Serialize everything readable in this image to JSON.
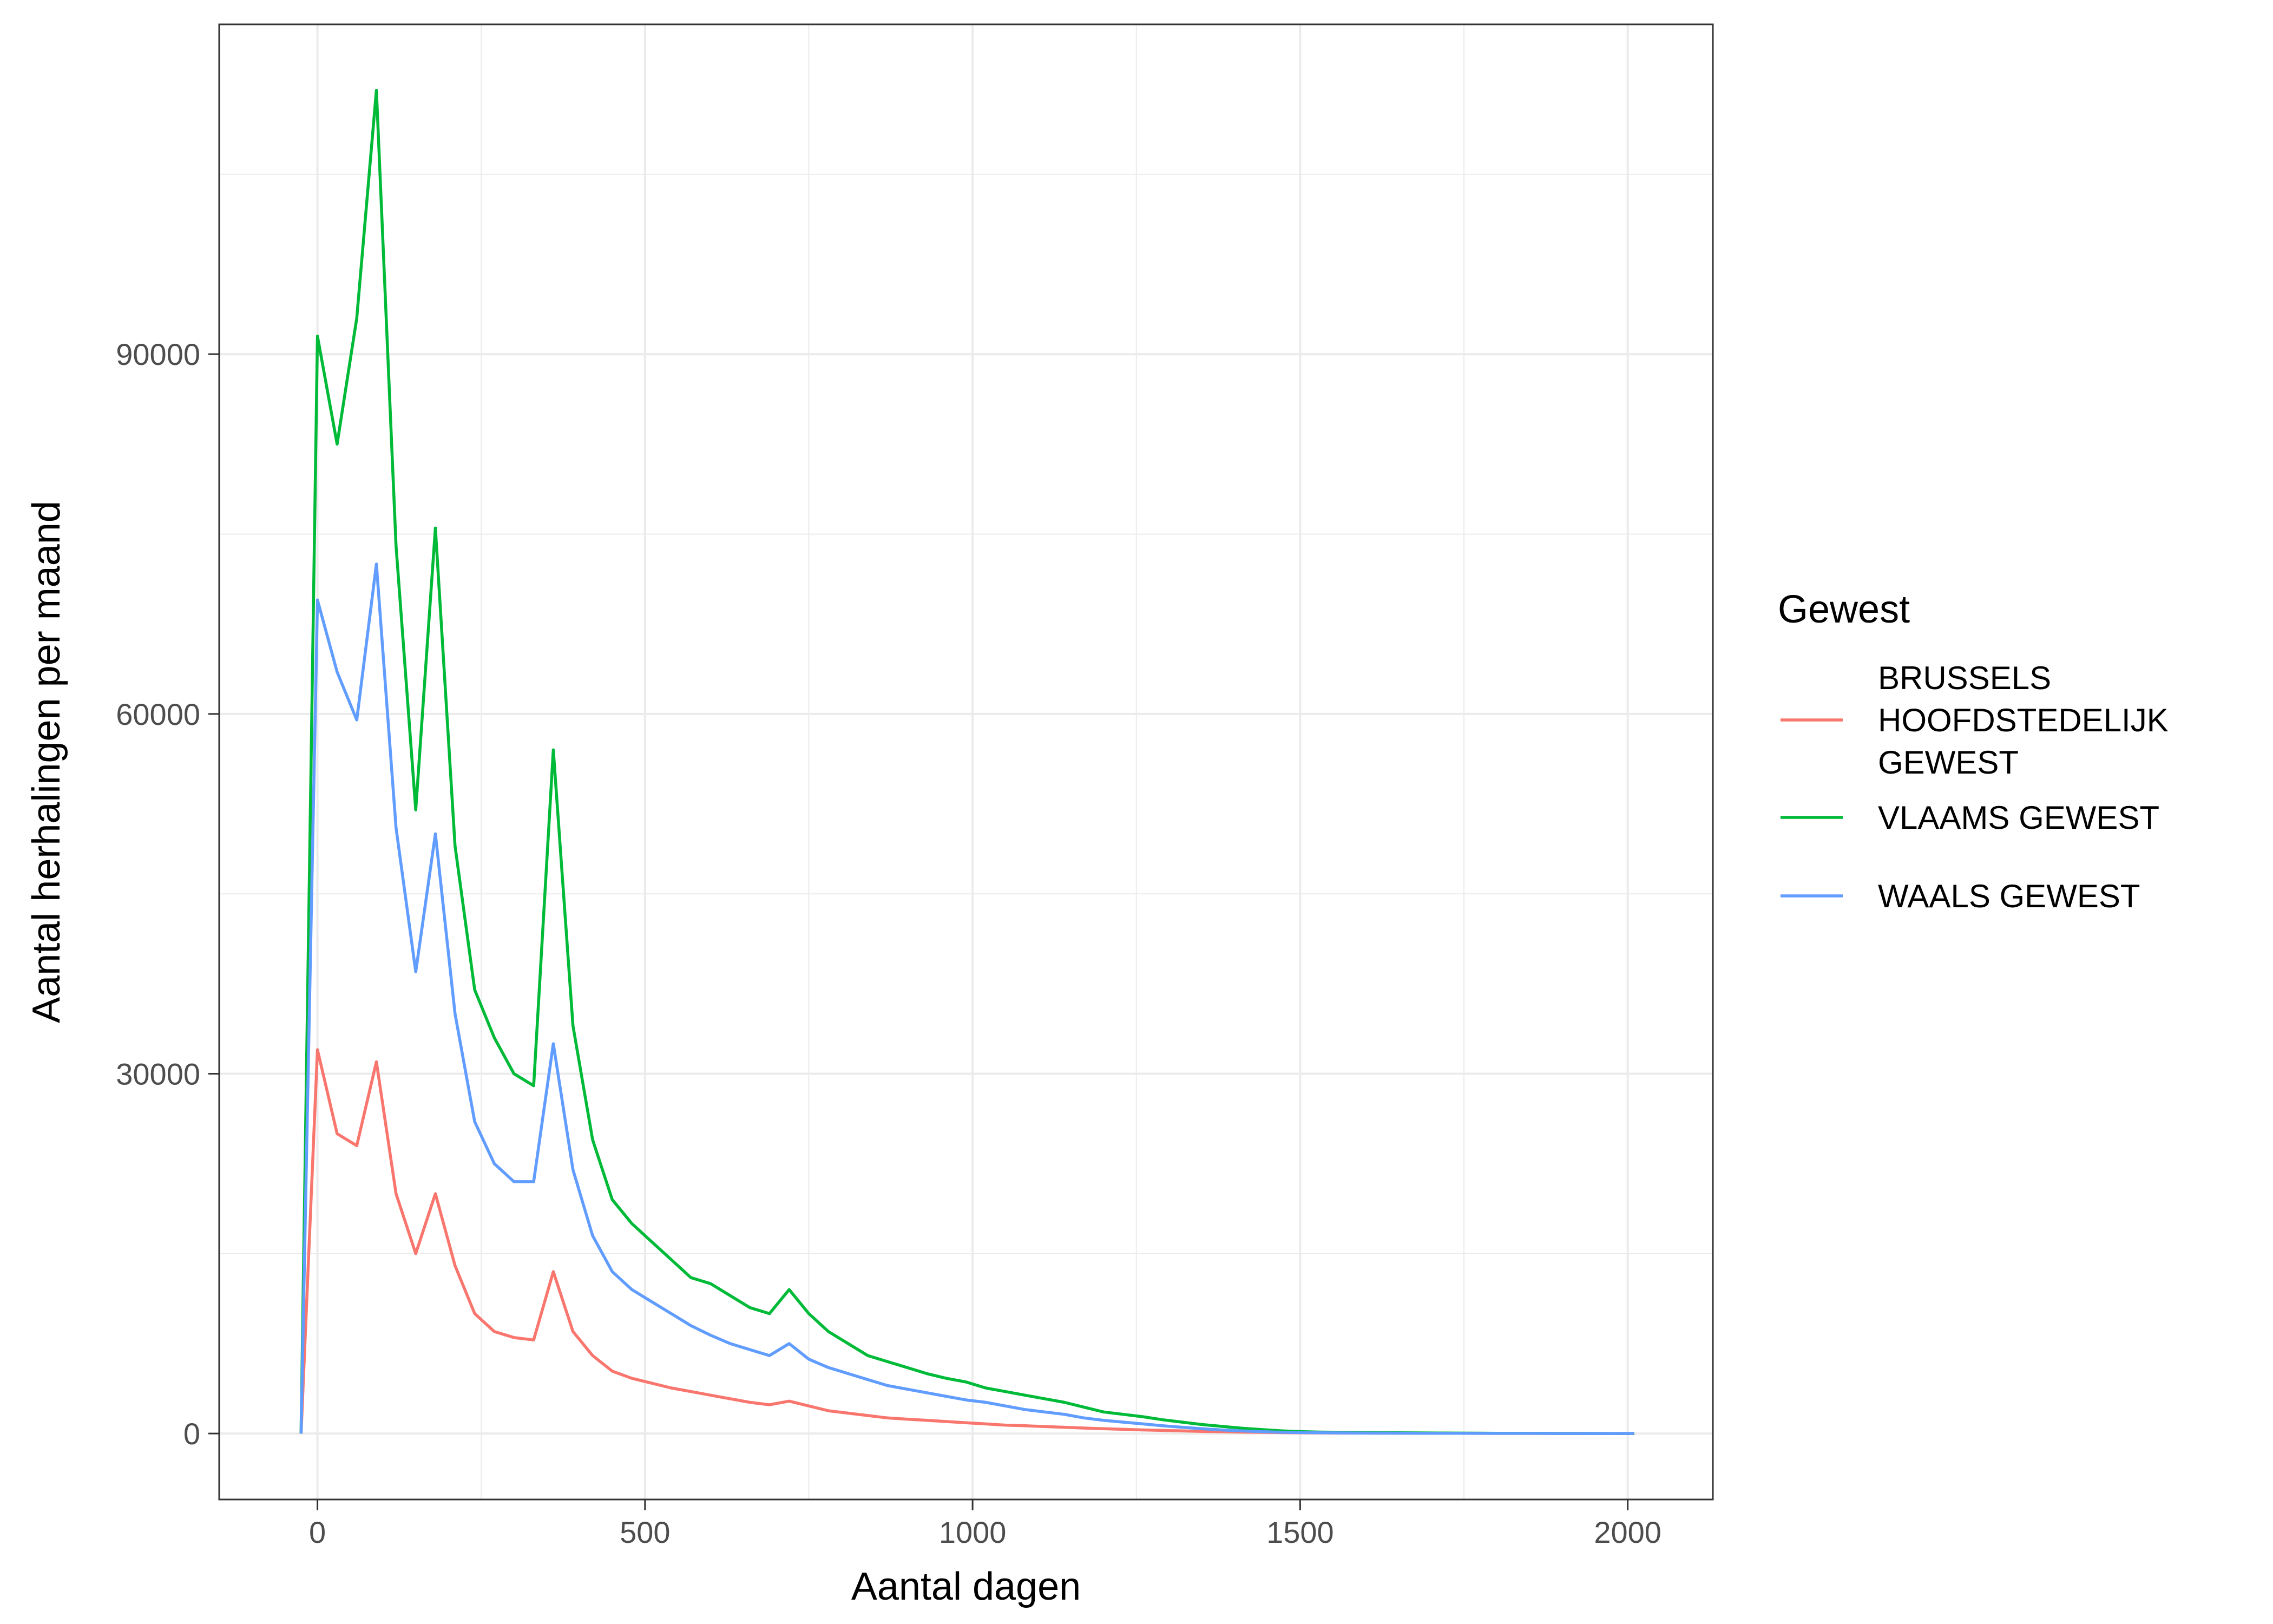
{
  "chart_data": {
    "type": "line",
    "title": "",
    "xlabel": "Aantal dagen",
    "ylabel": "Aantal herhalingen per maand",
    "xlim": [
      -150,
      2130
    ],
    "ylim": [
      -5500,
      117500
    ],
    "x_ticks": [
      0,
      500,
      1000,
      1500,
      2000
    ],
    "x_tick_labels": [
      "0",
      "500",
      "1000",
      "1500",
      "2000"
    ],
    "y_ticks": [
      0,
      30000,
      60000,
      90000
    ],
    "y_tick_labels": [
      "0",
      "30000",
      "60000",
      "90000"
    ],
    "grid": true,
    "legend": {
      "title": "Gewest",
      "position": "right"
    },
    "x": [
      -25,
      0,
      30,
      60,
      90,
      120,
      150,
      180,
      210,
      240,
      270,
      300,
      330,
      360,
      390,
      420,
      450,
      480,
      510,
      540,
      570,
      600,
      630,
      660,
      690,
      720,
      750,
      780,
      810,
      840,
      870,
      900,
      930,
      960,
      990,
      1020,
      1050,
      1080,
      1110,
      1140,
      1170,
      1200,
      1230,
      1260,
      1290,
      1320,
      1350,
      1380,
      1410,
      1440,
      1470,
      1500,
      1530,
      1560,
      1590,
      1620,
      1650,
      1680,
      1710,
      1740,
      1770,
      1800,
      1830,
      1860,
      1890,
      1920,
      1950,
      1980,
      2010
    ],
    "series": [
      {
        "name": "BRUSSELS HOOFDSTEDELIJK GEWEST",
        "label_lines": [
          "BRUSSELS",
          "HOOFDSTEDELIJK",
          "GEWEST"
        ],
        "color": "#F8766D",
        "values": [
          0,
          32000,
          25000,
          24000,
          31000,
          20000,
          15000,
          20000,
          14000,
          10000,
          8500,
          8000,
          7800,
          13500,
          8500,
          6500,
          5200,
          4600,
          4200,
          3800,
          3500,
          3200,
          2900,
          2600,
          2400,
          2700,
          2300,
          1900,
          1700,
          1500,
          1300,
          1200,
          1100,
          1000,
          900,
          800,
          700,
          650,
          580,
          520,
          460,
          400,
          350,
          300,
          260,
          220,
          180,
          150,
          120,
          100,
          80,
          60,
          50,
          45,
          40,
          35,
          30,
          25,
          20,
          18,
          15,
          12,
          10,
          8,
          6,
          5,
          4,
          3,
          2
        ]
      },
      {
        "name": "VLAAMS GEWEST",
        "label_lines": [
          "VLAAMS GEWEST"
        ],
        "color": "#00BA38",
        "values": [
          0,
          91500,
          82500,
          93000,
          112000,
          74000,
          52000,
          75500,
          49000,
          37000,
          33000,
          30000,
          29000,
          57000,
          34000,
          24500,
          19500,
          17500,
          16000,
          14500,
          13000,
          12500,
          11500,
          10500,
          10000,
          12000,
          10000,
          8500,
          7500,
          6500,
          6000,
          5500,
          5000,
          4600,
          4300,
          3800,
          3500,
          3200,
          2900,
          2600,
          2200,
          1800,
          1600,
          1400,
          1150,
          950,
          750,
          600,
          450,
          330,
          230,
          160,
          120,
          100,
          85,
          70,
          60,
          50,
          42,
          35,
          28,
          22,
          18,
          14,
          11,
          8,
          6,
          4,
          3
        ]
      },
      {
        "name": "WAALS GEWEST",
        "label_lines": [
          "WAALS GEWEST"
        ],
        "color": "#619CFF",
        "values": [
          0,
          69500,
          63500,
          59500,
          72500,
          50500,
          38500,
          50000,
          35000,
          26000,
          22500,
          21000,
          21000,
          32500,
          22000,
          16500,
          13500,
          12000,
          11000,
          10000,
          9000,
          8200,
          7500,
          7000,
          6500,
          7500,
          6200,
          5500,
          5000,
          4500,
          4000,
          3700,
          3400,
          3100,
          2800,
          2600,
          2300,
          2000,
          1800,
          1600,
          1300,
          1100,
          950,
          800,
          650,
          520,
          400,
          300,
          220,
          160,
          110,
          80,
          60,
          50,
          42,
          35,
          28,
          22,
          18,
          14,
          11,
          8,
          6,
          5,
          4,
          3,
          2,
          1,
          1
        ]
      }
    ]
  }
}
